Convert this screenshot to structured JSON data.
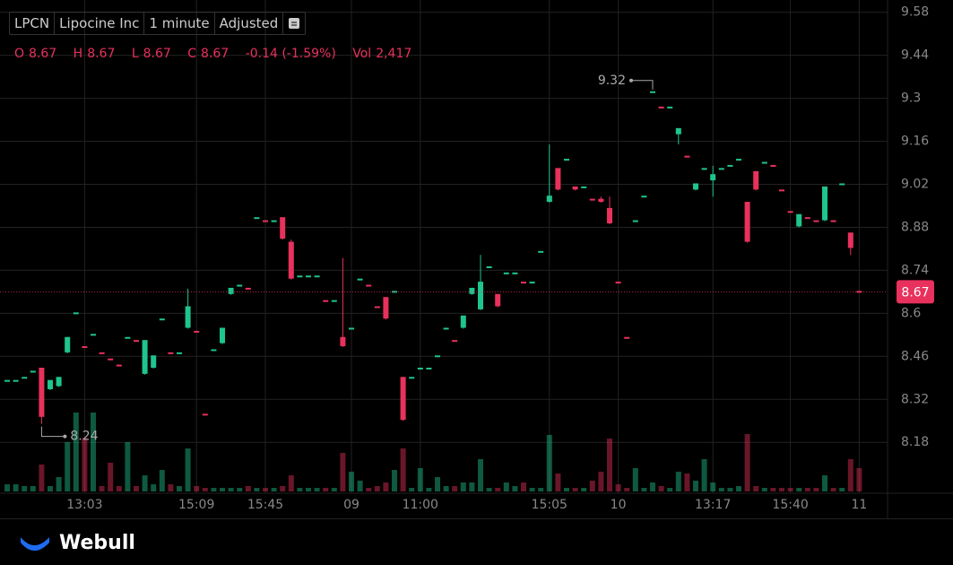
{
  "header": {
    "symbol": "LPCN",
    "name": "Lipocine Inc",
    "interval": "1 minute",
    "adjust": "Adjusted",
    "o": "O",
    "h": "H",
    "l": "L",
    "c": "C",
    "change": "-0.14 (-1.59%)",
    "vol_label": "Vol",
    "vol": "2,417"
  },
  "footer": {
    "brand": "Webull"
  },
  "chart_data": {
    "type": "candlestick",
    "up_color": "#1ec58e",
    "down_color": "#e8315c",
    "categories": [
      null,
      null,
      null,
      null,
      null,
      null,
      null,
      null,
      null,
      "13:03",
      null,
      null,
      null,
      null,
      null,
      null,
      null,
      null,
      null,
      null,
      null,
      null,
      "15:09",
      null,
      null,
      null,
      null,
      null,
      null,
      null,
      "15:45",
      null,
      null,
      null,
      null,
      null,
      null,
      null,
      null,
      null,
      "09",
      null,
      null,
      null,
      null,
      null,
      null,
      null,
      "11:00",
      null,
      null,
      null,
      null,
      null,
      null,
      null,
      null,
      null,
      null,
      null,
      null,
      null,
      null,
      "15:05",
      null,
      null,
      null,
      null,
      null,
      null,
      null,
      "10",
      null,
      null,
      null,
      null,
      null,
      null,
      null,
      null,
      null,
      null,
      "13:17",
      null,
      null,
      null,
      null,
      null,
      null,
      null,
      null,
      "15:40",
      null,
      null,
      null,
      null,
      null,
      null,
      null,
      "11"
    ],
    "open": [
      8.38,
      8.38,
      8.39,
      8.41,
      8.42,
      8.35,
      8.36,
      8.47,
      8.6,
      8.49,
      8.53,
      8.47,
      8.45,
      8.43,
      8.52,
      8.51,
      8.4,
      8.42,
      8.58,
      8.47,
      8.47,
      8.55,
      8.54,
      8.27,
      8.48,
      8.5,
      8.66,
      8.69,
      8.68,
      8.91,
      8.9,
      8.9,
      8.91,
      8.83,
      8.72,
      8.72,
      8.72,
      8.64,
      8.64,
      8.52,
      8.55,
      8.71,
      8.69,
      8.62,
      8.65,
      8.67,
      8.39,
      8.39,
      8.42,
      8.42,
      8.46,
      8.55,
      8.51,
      8.55,
      8.66,
      8.61,
      8.75,
      8.66,
      8.73,
      8.73,
      8.7,
      8.7,
      8.8,
      8.96,
      9.07,
      9.1,
      9.01,
      9.01,
      8.97,
      8.97,
      8.94,
      8.7,
      8.52,
      8.9,
      8.98,
      9.32,
      9.27,
      9.27,
      9.18,
      9.11,
      9.0,
      9.07,
      9.03,
      9.07,
      9.08,
      9.1,
      8.96,
      9.06,
      9.09,
      9.08,
      9.0,
      8.93,
      8.88,
      8.91,
      8.9,
      8.9,
      8.9,
      9.02,
      8.86,
      8.67
    ],
    "close": [
      8.38,
      8.38,
      8.39,
      8.41,
      8.26,
      8.38,
      8.39,
      8.52,
      8.6,
      8.49,
      8.53,
      8.47,
      8.45,
      8.43,
      8.52,
      8.51,
      8.51,
      8.46,
      8.58,
      8.47,
      8.47,
      8.62,
      8.54,
      8.27,
      8.48,
      8.55,
      8.68,
      8.69,
      8.68,
      8.91,
      8.9,
      8.9,
      8.84,
      8.71,
      8.72,
      8.72,
      8.72,
      8.64,
      8.64,
      8.49,
      8.55,
      8.71,
      8.69,
      8.62,
      8.58,
      8.67,
      8.25,
      8.39,
      8.42,
      8.42,
      8.46,
      8.55,
      8.51,
      8.59,
      8.68,
      8.7,
      8.75,
      8.62,
      8.73,
      8.73,
      8.7,
      8.7,
      8.8,
      8.98,
      9.0,
      9.1,
      9.0,
      9.01,
      8.97,
      8.96,
      8.89,
      8.7,
      8.52,
      8.9,
      8.98,
      9.32,
      9.27,
      9.27,
      9.2,
      9.11,
      9.02,
      9.07,
      9.05,
      9.07,
      9.08,
      9.1,
      8.83,
      9.0,
      9.09,
      9.08,
      9.0,
      8.93,
      8.92,
      8.91,
      8.9,
      9.01,
      8.9,
      9.02,
      8.81,
      8.67
    ],
    "high": [
      8.38,
      8.38,
      8.39,
      8.41,
      8.42,
      8.38,
      8.39,
      8.52,
      8.6,
      8.49,
      8.53,
      8.47,
      8.45,
      8.43,
      8.52,
      8.51,
      8.51,
      8.46,
      8.58,
      8.47,
      8.47,
      8.68,
      8.54,
      8.27,
      8.48,
      8.55,
      8.68,
      8.69,
      8.68,
      8.91,
      8.9,
      8.9,
      8.91,
      8.84,
      8.72,
      8.72,
      8.72,
      8.64,
      8.64,
      8.78,
      8.55,
      8.71,
      8.69,
      8.62,
      8.65,
      8.67,
      8.39,
      8.39,
      8.42,
      8.42,
      8.46,
      8.55,
      8.51,
      8.59,
      8.68,
      8.79,
      8.75,
      8.66,
      8.73,
      8.73,
      8.7,
      8.7,
      8.8,
      9.15,
      9.07,
      9.1,
      9.01,
      9.01,
      8.97,
      8.98,
      8.98,
      8.7,
      8.52,
      8.9,
      8.98,
      9.32,
      9.27,
      9.27,
      9.2,
      9.11,
      9.02,
      9.07,
      9.08,
      9.07,
      9.08,
      9.1,
      8.96,
      9.06,
      9.09,
      9.08,
      9.0,
      8.93,
      8.92,
      8.91,
      8.9,
      9.01,
      8.9,
      9.02,
      8.86,
      8.67
    ],
    "low": [
      8.38,
      8.38,
      8.39,
      8.41,
      8.24,
      8.35,
      8.36,
      8.47,
      8.6,
      8.49,
      8.53,
      8.47,
      8.45,
      8.43,
      8.52,
      8.51,
      8.4,
      8.42,
      8.58,
      8.47,
      8.47,
      8.55,
      8.54,
      8.27,
      8.48,
      8.5,
      8.66,
      8.69,
      8.68,
      8.91,
      8.9,
      8.9,
      8.84,
      8.71,
      8.72,
      8.72,
      8.72,
      8.64,
      8.64,
      8.49,
      8.55,
      8.71,
      8.69,
      8.62,
      8.58,
      8.67,
      8.25,
      8.39,
      8.42,
      8.42,
      8.46,
      8.55,
      8.51,
      8.55,
      8.66,
      8.61,
      8.75,
      8.62,
      8.73,
      8.73,
      8.7,
      8.7,
      8.8,
      8.96,
      9.0,
      9.1,
      9.0,
      9.01,
      8.97,
      8.96,
      8.89,
      8.7,
      8.52,
      8.9,
      8.98,
      9.32,
      9.27,
      9.27,
      9.15,
      9.11,
      9.0,
      9.07,
      8.98,
      9.07,
      9.08,
      9.1,
      8.83,
      9.0,
      9.09,
      9.08,
      9.0,
      8.93,
      8.88,
      8.91,
      8.9,
      8.9,
      8.9,
      9.02,
      8.79,
      8.67
    ],
    "volume": [
      740,
      740,
      560,
      560,
      2790,
      560,
      1490,
      5120,
      8180,
      5580,
      8180,
      560,
      2980,
      560,
      5120,
      560,
      1670,
      740,
      2230,
      740,
      560,
      4460,
      560,
      370,
      370,
      370,
      370,
      370,
      560,
      370,
      370,
      370,
      560,
      1670,
      370,
      370,
      370,
      370,
      370,
      4000,
      2050,
      1120,
      370,
      560,
      930,
      2230,
      4460,
      370,
      2420,
      370,
      1490,
      560,
      560,
      930,
      930,
      3350,
      370,
      370,
      930,
      560,
      930,
      370,
      370,
      5860,
      1860,
      370,
      370,
      370,
      1120,
      2050,
      5490,
      740,
      370,
      2420,
      370,
      930,
      560,
      370,
      2050,
      1860,
      1120,
      3350,
      930,
      370,
      370,
      560,
      5950,
      560,
      370,
      370,
      370,
      370,
      370,
      370,
      370,
      1670,
      370,
      370,
      3350,
      2417
    ],
    "ylim": [
      8.02,
      9.62
    ],
    "yticks": [
      8.18,
      8.32,
      8.46,
      8.6,
      8.74,
      8.88,
      9.02,
      9.16,
      9.3,
      9.44,
      9.58
    ],
    "annotations": [
      9.32,
      8.24
    ],
    "grid": true
  }
}
